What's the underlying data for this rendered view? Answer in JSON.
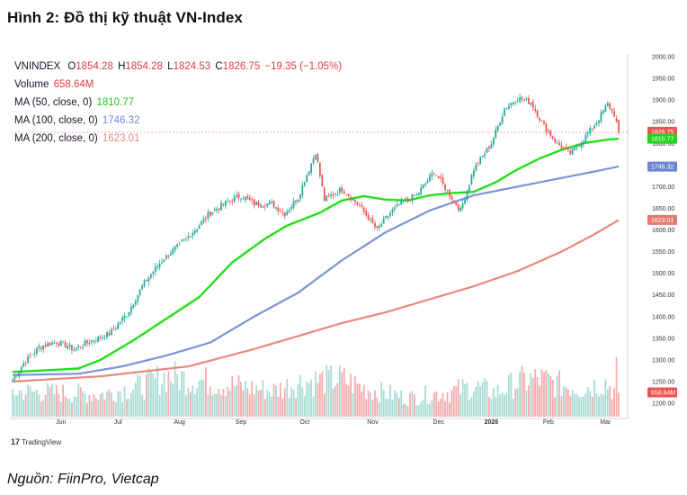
{
  "figure_title": "Hình 2: Đồ thị kỹ thuật VN-Index",
  "source": "Nguồn: FiinPro, Vietcap",
  "tradingview": "TradingView",
  "legend": {
    "symbol": "VNINDEX",
    "o_label": "O",
    "o": "1854.28",
    "h_label": "H",
    "h": "1854.28",
    "l_label": "L",
    "l": "1824.53",
    "c_label": "C",
    "c": "1826.75",
    "change": "−19.35 (−1.05%)",
    "volume_label": "Volume",
    "volume": "658.64M",
    "ma50_label": "MA (50, close, 0)",
    "ma50": "1810.77",
    "ma100_label": "MA (100, close, 0)",
    "ma100": "1746.32",
    "ma200_label": "MA (200, close, 0)",
    "ma200": "1623.01"
  },
  "colors": {
    "up": "#26a69a",
    "down": "#ef5350",
    "ma50": "#22e01a",
    "ma100": "#7b93d6",
    "ma200": "#e8897c",
    "vol_up": "#a6dbd3",
    "vol_down": "#f6a9ab"
  },
  "chart_data": {
    "type": "candlestick",
    "x_ticks": [
      "Jun",
      "Jul",
      "Aug",
      "Sep",
      "Oct",
      "Nov",
      "Dec",
      "2026",
      "Feb",
      "Mar"
    ],
    "y_ticks": [
      "2000.00",
      "1950.00",
      "1900.00",
      "1850.00",
      "1800.00",
      "1750.00",
      "1700.00",
      "1650.00",
      "1600.00",
      "1550.00",
      "1500.00",
      "1450.00",
      "1400.00",
      "1350.00",
      "1300.00",
      "1250.00",
      "1200.00"
    ],
    "ylim": [
      1190,
      2005
    ],
    "price_badges": [
      "1826.75",
      "1810.77",
      "1746.32",
      "1623.01",
      "658.64M"
    ],
    "close_anchors": [
      [
        0,
        1255
      ],
      [
        5,
        1292
      ],
      [
        12,
        1330
      ],
      [
        20,
        1342
      ],
      [
        28,
        1325
      ],
      [
        35,
        1342
      ],
      [
        44,
        1360
      ],
      [
        52,
        1405
      ],
      [
        60,
        1478
      ],
      [
        68,
        1530
      ],
      [
        76,
        1565
      ],
      [
        84,
        1605
      ],
      [
        90,
        1640
      ],
      [
        98,
        1665
      ],
      [
        104,
        1680
      ],
      [
        110,
        1660
      ],
      [
        118,
        1660
      ],
      [
        124,
        1638
      ],
      [
        130,
        1675
      ],
      [
        138,
        1780
      ],
      [
        142,
        1670
      ],
      [
        150,
        1695
      ],
      [
        158,
        1655
      ],
      [
        166,
        1600
      ],
      [
        172,
        1640
      ],
      [
        178,
        1665
      ],
      [
        184,
        1680
      ],
      [
        192,
        1735
      ],
      [
        198,
        1690
      ],
      [
        204,
        1645
      ],
      [
        210,
        1740
      ],
      [
        218,
        1800
      ],
      [
        224,
        1880
      ],
      [
        230,
        1905
      ],
      [
        236,
        1895
      ],
      [
        242,
        1840
      ],
      [
        248,
        1800
      ],
      [
        254,
        1775
      ],
      [
        260,
        1810
      ],
      [
        266,
        1850
      ],
      [
        271,
        1890
      ],
      [
        274,
        1866
      ],
      [
        276,
        1826.75
      ]
    ],
    "ma50_anchors": [
      [
        0,
        1272
      ],
      [
        30,
        1280
      ],
      [
        40,
        1300
      ],
      [
        55,
        1345
      ],
      [
        70,
        1395
      ],
      [
        85,
        1445
      ],
      [
        100,
        1525
      ],
      [
        115,
        1580
      ],
      [
        125,
        1610
      ],
      [
        140,
        1640
      ],
      [
        150,
        1668
      ],
      [
        160,
        1678
      ],
      [
        170,
        1670
      ],
      [
        180,
        1668
      ],
      [
        190,
        1680
      ],
      [
        200,
        1685
      ],
      [
        210,
        1688
      ],
      [
        220,
        1710
      ],
      [
        230,
        1740
      ],
      [
        240,
        1765
      ],
      [
        250,
        1785
      ],
      [
        260,
        1800
      ],
      [
        270,
        1808
      ],
      [
        276,
        1810.77
      ]
    ],
    "ma100_anchors": [
      [
        0,
        1265
      ],
      [
        30,
        1268
      ],
      [
        50,
        1285
      ],
      [
        70,
        1310
      ],
      [
        90,
        1340
      ],
      [
        110,
        1400
      ],
      [
        130,
        1455
      ],
      [
        150,
        1530
      ],
      [
        170,
        1595
      ],
      [
        190,
        1645
      ],
      [
        210,
        1680
      ],
      [
        230,
        1700
      ],
      [
        250,
        1720
      ],
      [
        265,
        1735
      ],
      [
        276,
        1746.32
      ]
    ],
    "ma200_anchors": [
      [
        0,
        1250
      ],
      [
        40,
        1262
      ],
      [
        80,
        1285
      ],
      [
        110,
        1325
      ],
      [
        130,
        1355
      ],
      [
        150,
        1385
      ],
      [
        170,
        1410
      ],
      [
        190,
        1440
      ],
      [
        210,
        1470
      ],
      [
        230,
        1505
      ],
      [
        250,
        1550
      ],
      [
        265,
        1590
      ],
      [
        276,
        1623.01
      ]
    ],
    "volume_anchors": [
      [
        0,
        0.4
      ],
      [
        20,
        0.38
      ],
      [
        40,
        0.35
      ],
      [
        60,
        0.5
      ],
      [
        70,
        0.65
      ],
      [
        80,
        0.6
      ],
      [
        90,
        0.55
      ],
      [
        100,
        0.5
      ],
      [
        110,
        0.45
      ],
      [
        120,
        0.42
      ],
      [
        130,
        0.55
      ],
      [
        150,
        0.6
      ],
      [
        160,
        0.45
      ],
      [
        180,
        0.3
      ],
      [
        200,
        0.4
      ],
      [
        210,
        0.48
      ],
      [
        220,
        0.38
      ],
      [
        230,
        0.55
      ],
      [
        240,
        0.6
      ],
      [
        250,
        0.5
      ],
      [
        260,
        0.45
      ],
      [
        270,
        0.55
      ],
      [
        276,
        0.35
      ]
    ]
  }
}
